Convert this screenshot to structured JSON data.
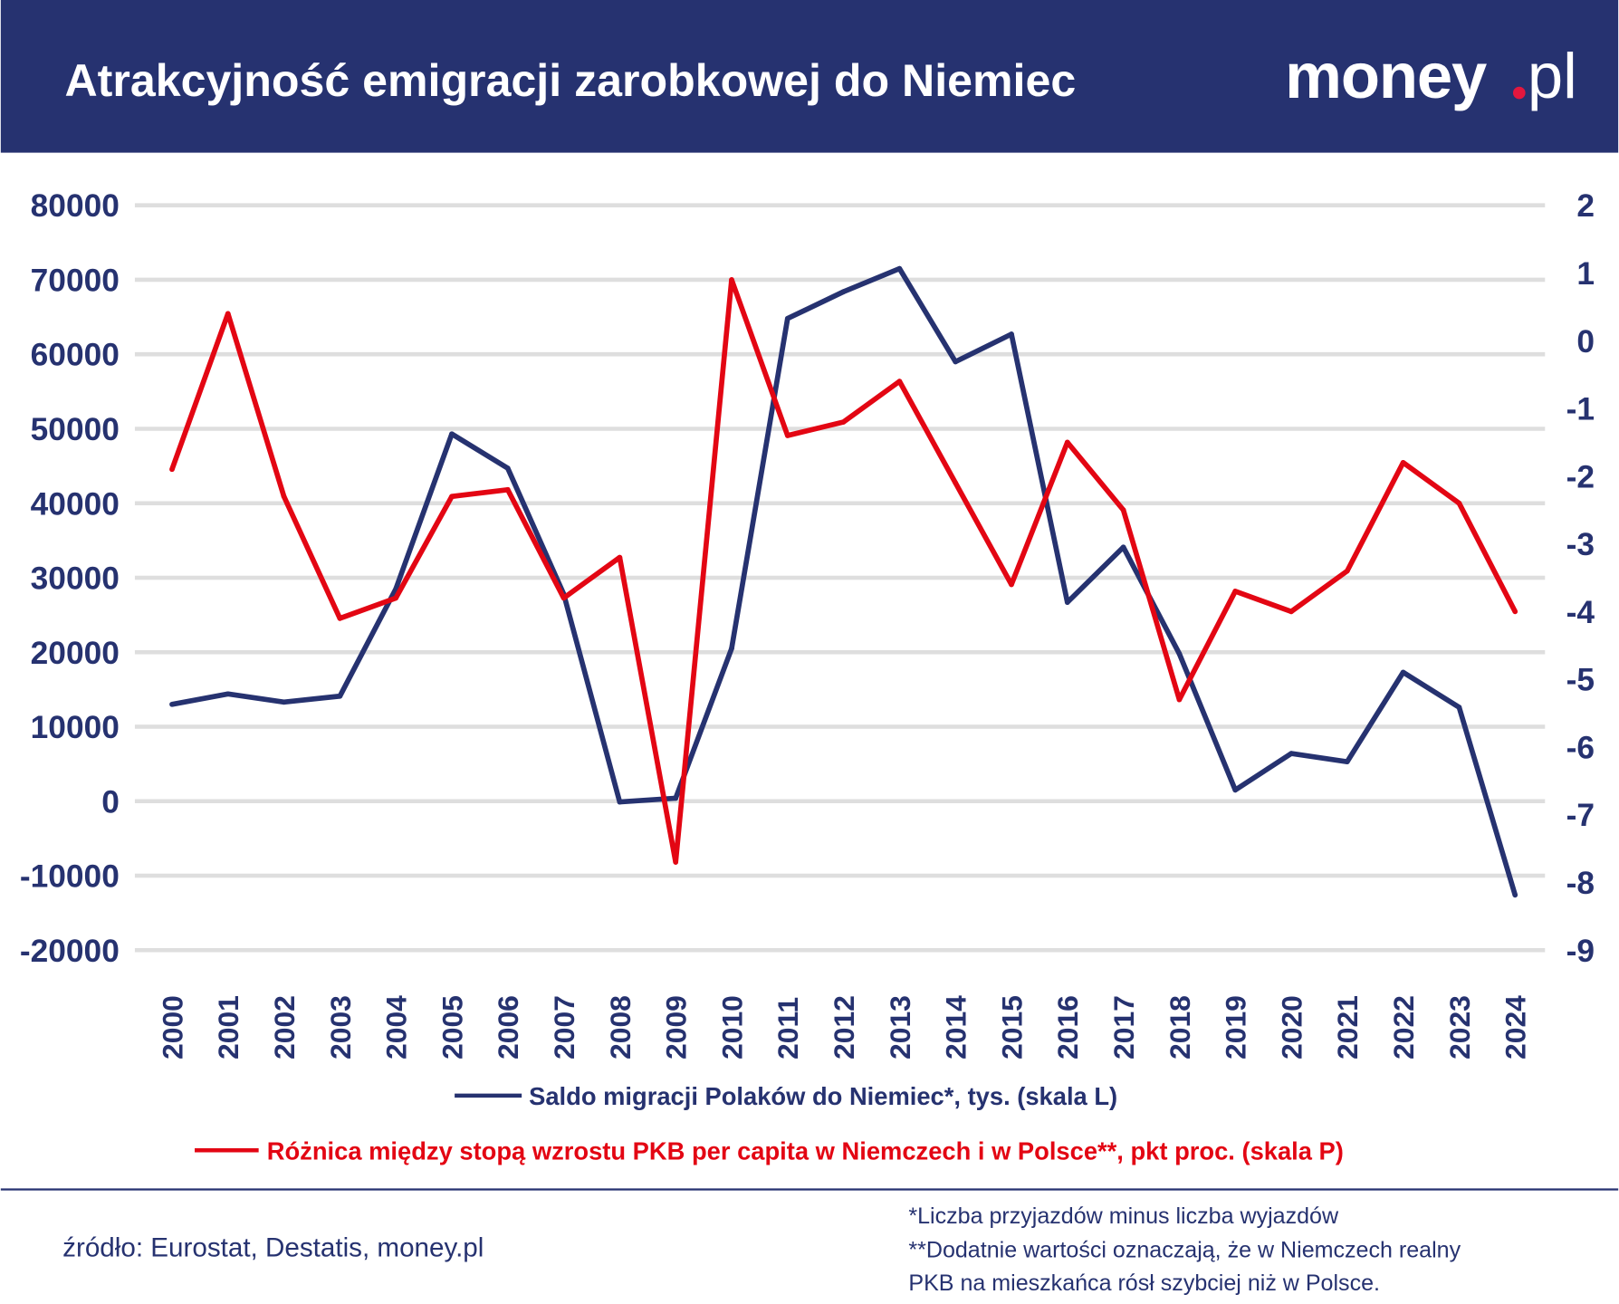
{
  "header": {
    "title": "Atrakcyjność emigracji zarobkowej do Niemiec",
    "logo_main": "money",
    "logo_suffix": "pl",
    "background": "#263270",
    "logo_dot_color": "#e3173e"
  },
  "chart_data": {
    "type": "line",
    "title": "Atrakcyjność emigracji zarobkowej do Niemiec",
    "x": [
      "2000",
      "2001",
      "2002",
      "2003",
      "2004",
      "2005",
      "2006",
      "2007",
      "2008",
      "2009",
      "2010",
      "2011",
      "2012",
      "2013",
      "2014",
      "2015",
      "2016",
      "2017",
      "2018",
      "2019",
      "2020",
      "2021",
      "2022",
      "2023",
      "2024"
    ],
    "left_axis": {
      "ylim": [
        -20000,
        80000
      ],
      "ticks": [
        "80000",
        "70000",
        "60000",
        "50000",
        "40000",
        "30000",
        "20000",
        "10000",
        "0",
        "-10000",
        "-20000"
      ],
      "tick_values": [
        80000,
        70000,
        60000,
        50000,
        40000,
        30000,
        20000,
        10000,
        0,
        -10000,
        -20000
      ]
    },
    "right_axis": {
      "ylim": [
        -9,
        2
      ],
      "ticks": [
        "2",
        "1",
        "0",
        "-1",
        "-2",
        "-3",
        "-4",
        "-5",
        "-6",
        "-7",
        "-8",
        "-9"
      ],
      "tick_values": [
        2,
        1,
        0,
        -1,
        -2,
        -3,
        -4,
        -5,
        -6,
        -7,
        -8,
        -9
      ]
    },
    "grid": true,
    "legend_placement": "bottom",
    "series": [
      {
        "name": "Saldo migracji Polaków do Niemiec*, tys. (skala L)",
        "axis": "left",
        "color": "#263270",
        "values": [
          13000,
          14400,
          13300,
          14100,
          28500,
          49300,
          44700,
          27800,
          -100,
          400,
          20500,
          64800,
          68400,
          71500,
          59000,
          62700,
          26700,
          34100,
          19800,
          1500,
          6400,
          5300,
          17300,
          12600,
          -12600
        ]
      },
      {
        "name": "Różnica między stopą wzrostu PKB per capita w Niemczech i w Polsce**, pkt proc. (skala P)",
        "axis": "right",
        "color": "#e30613",
        "values": [
          -1.9,
          0.4,
          -2.3,
          -4.1,
          -3.8,
          -2.3,
          -2.2,
          -3.8,
          -3.2,
          -7.7,
          0.9,
          -1.4,
          -1.2,
          -0.6,
          -2.1,
          -3.6,
          -1.5,
          -2.5,
          -5.3,
          -3.7,
          -4.0,
          -3.4,
          -1.8,
          -2.4,
          -4.0
        ]
      }
    ]
  },
  "footer": {
    "source": "źródło: Eurostat, Destatis, money.pl",
    "notes": [
      "*Liczba przyjazdów minus liczba wyjazdów",
      "**Dodatnie wartości oznaczają, że w Niemczech realny",
      "PKB na mieszkańca rósł szybciej niż w Polsce."
    ]
  }
}
